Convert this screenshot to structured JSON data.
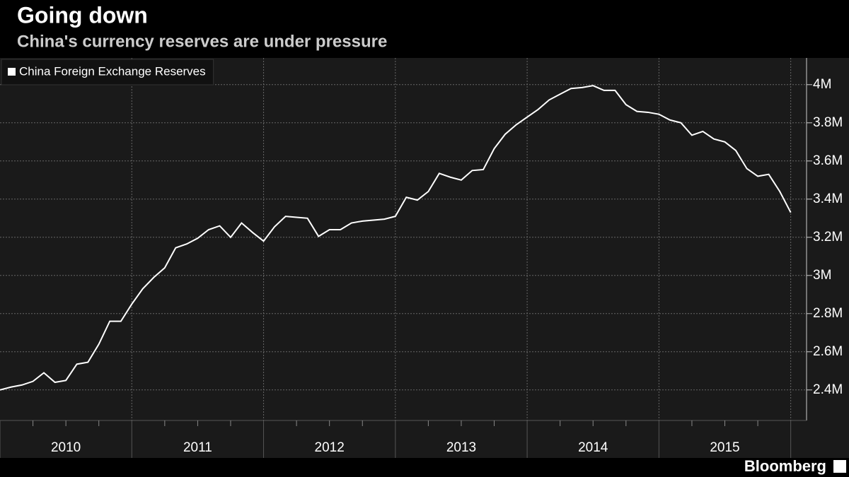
{
  "chart_data": {
    "type": "line",
    "title": "Going down",
    "subtitle": "China's currency reserves are under pressure",
    "source": "Bloomberg",
    "x": [
      2010,
      2010.083,
      2010.167,
      2010.25,
      2010.333,
      2010.417,
      2010.5,
      2010.583,
      2010.667,
      2010.75,
      2010.833,
      2010.917,
      2011,
      2011.083,
      2011.167,
      2011.25,
      2011.333,
      2011.417,
      2011.5,
      2011.583,
      2011.667,
      2011.75,
      2011.833,
      2011.917,
      2012,
      2012.083,
      2012.167,
      2012.25,
      2012.333,
      2012.417,
      2012.5,
      2012.583,
      2012.667,
      2012.75,
      2012.833,
      2012.917,
      2013,
      2013.083,
      2013.167,
      2013.25,
      2013.333,
      2013.417,
      2013.5,
      2013.583,
      2013.667,
      2013.75,
      2013.833,
      2013.917,
      2014,
      2014.083,
      2014.167,
      2014.25,
      2014.333,
      2014.417,
      2014.5,
      2014.583,
      2014.667,
      2014.75,
      2014.833,
      2014.917,
      2015,
      2015.083,
      2015.167,
      2015.25,
      2015.333,
      2015.417,
      2015.5,
      2015.583,
      2015.667,
      2015.75,
      2015.833,
      2015.917,
      2016
    ],
    "series": [
      {
        "name": "China Foreign Exchange Reserves",
        "color": "#ffffff",
        "values": [
          2.4,
          2.415,
          2.426,
          2.445,
          2.49,
          2.44,
          2.45,
          2.535,
          2.545,
          2.64,
          2.76,
          2.76,
          2.85,
          2.93,
          2.99,
          3.04,
          3.145,
          3.165,
          3.195,
          3.24,
          3.26,
          3.2,
          3.275,
          3.225,
          3.18,
          3.255,
          3.31,
          3.305,
          3.3,
          3.205,
          3.24,
          3.24,
          3.275,
          3.285,
          3.29,
          3.295,
          3.31,
          3.41,
          3.395,
          3.44,
          3.535,
          3.515,
          3.5,
          3.55,
          3.555,
          3.665,
          3.74,
          3.79,
          3.83,
          3.87,
          3.92,
          3.95,
          3.98,
          3.985,
          3.995,
          3.97,
          3.97,
          3.895,
          3.86,
          3.855,
          3.845,
          3.815,
          3.8,
          3.735,
          3.755,
          3.715,
          3.7,
          3.655,
          3.56,
          3.52,
          3.53,
          3.44,
          3.33
        ]
      }
    ],
    "xlim": [
      2010,
      2016.12
    ],
    "xticks": [
      2010,
      2011,
      2012,
      2013,
      2014,
      2015
    ],
    "ylim": [
      2.24,
      4.14
    ],
    "yticks": [
      {
        "value": 2.4,
        "label": "2.4M"
      },
      {
        "value": 2.6,
        "label": "2.6M"
      },
      {
        "value": 2.8,
        "label": "2.8M"
      },
      {
        "value": 3,
        "label": "3M"
      },
      {
        "value": 3.2,
        "label": "3.2M"
      },
      {
        "value": 3.4,
        "label": "3.4M"
      },
      {
        "value": 3.6,
        "label": "3.6M"
      },
      {
        "value": 3.8,
        "label": "3.8M"
      },
      {
        "value": 4,
        "label": "4M"
      }
    ],
    "grid": true,
    "legend": "top-left"
  }
}
